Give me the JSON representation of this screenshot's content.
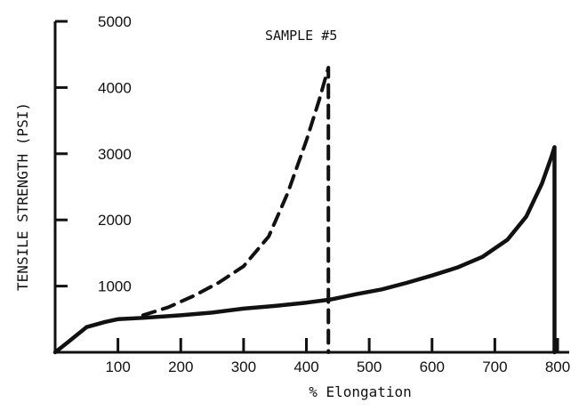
{
  "chart_data": {
    "type": "line",
    "title": "SAMPLE #5",
    "xlabel": "% Elongation",
    "ylabel": "TENSILE STRENGTH (PSI)",
    "xlim": [
      0,
      800
    ],
    "ylim": [
      0,
      5000
    ],
    "x_ticks": [
      100,
      200,
      300,
      400,
      500,
      600,
      700,
      800
    ],
    "y_ticks": [
      1000,
      2000,
      3000,
      4000,
      5000
    ],
    "grid": false,
    "legend": "none",
    "series": [
      {
        "style": "solid",
        "points": [
          [
            0,
            0
          ],
          [
            20,
            150
          ],
          [
            50,
            380
          ],
          [
            80,
            460
          ],
          [
            100,
            500
          ],
          [
            140,
            520
          ],
          [
            200,
            560
          ],
          [
            250,
            600
          ],
          [
            300,
            660
          ],
          [
            350,
            700
          ],
          [
            400,
            750
          ],
          [
            440,
            800
          ],
          [
            480,
            880
          ],
          [
            520,
            950
          ],
          [
            560,
            1050
          ],
          [
            600,
            1160
          ],
          [
            640,
            1280
          ],
          [
            680,
            1440
          ],
          [
            720,
            1700
          ],
          [
            750,
            2050
          ],
          [
            775,
            2550
          ],
          [
            790,
            2950
          ],
          [
            795,
            3100
          ]
        ],
        "terminal_drop_to": 0
      },
      {
        "style": "dashed",
        "points": [
          [
            140,
            560
          ],
          [
            180,
            680
          ],
          [
            220,
            850
          ],
          [
            260,
            1050
          ],
          [
            300,
            1300
          ],
          [
            340,
            1750
          ],
          [
            370,
            2400
          ],
          [
            400,
            3200
          ],
          [
            420,
            3800
          ],
          [
            435,
            4300
          ]
        ],
        "terminal_drop_to": 0
      }
    ]
  }
}
